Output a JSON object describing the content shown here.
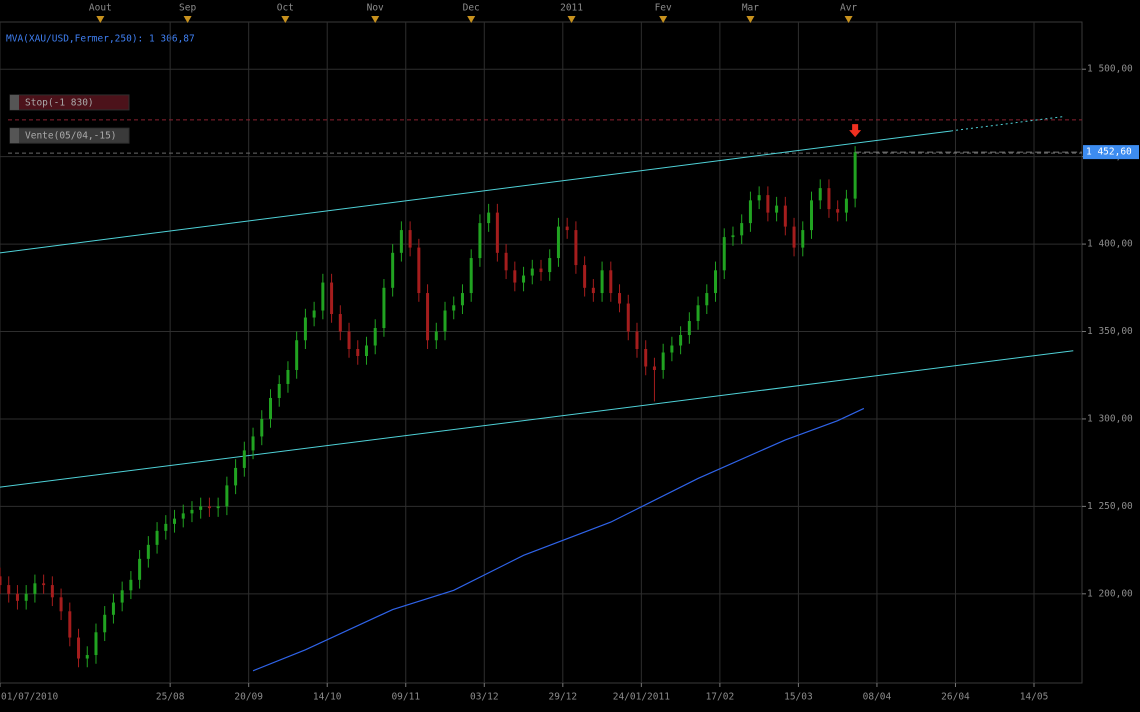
{
  "chart_data": {
    "type": "candlestick",
    "grid": true,
    "up_color": "#21a321",
    "down_color": "#a51d1d",
    "xlim": [
      0,
      248
    ],
    "ylim": [
      1149,
      1527
    ],
    "xticks": [
      {
        "value": 0,
        "label": "01/07/2010"
      },
      {
        "value": 39,
        "label": "25/08"
      },
      {
        "value": 57,
        "label": "20/09"
      },
      {
        "value": 75,
        "label": "14/10"
      },
      {
        "value": 93,
        "label": "09/11"
      },
      {
        "value": 111,
        "label": "03/12"
      },
      {
        "value": 129,
        "label": "29/12"
      },
      {
        "value": 147,
        "label": "24/01/2011"
      },
      {
        "value": 165,
        "label": "17/02"
      },
      {
        "value": 183,
        "label": "15/03"
      },
      {
        "value": 201,
        "label": "08/04"
      },
      {
        "value": 219,
        "label": "26/04"
      },
      {
        "value": 237,
        "label": "14/05"
      }
    ],
    "top_ticks": [
      {
        "value": 23,
        "label": "Aout"
      },
      {
        "value": 43,
        "label": "Sep"
      },
      {
        "value": 65.4,
        "label": "Oct"
      },
      {
        "value": 86,
        "label": "Nov"
      },
      {
        "value": 108,
        "label": "Dec"
      },
      {
        "value": 131,
        "label": "2011"
      },
      {
        "value": 152,
        "label": "Fev"
      },
      {
        "value": 172,
        "label": "Mar"
      },
      {
        "value": 194.5,
        "label": "Avr"
      }
    ],
    "yticks": [
      {
        "value": 1200,
        "label": "1 200,00"
      },
      {
        "value": 1250,
        "label": "1 250,00"
      },
      {
        "value": 1300,
        "label": "1 300,00"
      },
      {
        "value": 1350,
        "label": "1 350,00"
      },
      {
        "value": 1400,
        "label": "1 400,00"
      },
      {
        "value": 1450,
        "label": "1 450,00"
      },
      {
        "value": 1500,
        "label": "1 500,00"
      }
    ],
    "x": [
      0,
      2,
      4,
      6,
      8,
      10,
      12,
      14,
      16,
      18,
      20,
      22,
      24,
      26,
      28,
      30,
      32,
      34,
      36,
      38,
      40,
      42,
      44,
      46,
      48,
      50,
      52,
      54,
      56,
      58,
      60,
      62,
      64,
      66,
      68,
      70,
      72,
      74,
      76,
      78,
      80,
      82,
      84,
      86,
      88,
      90,
      92,
      94,
      96,
      98,
      100,
      102,
      104,
      106,
      108,
      110,
      112,
      114,
      116,
      118,
      120,
      122,
      124,
      126,
      128,
      130,
      132,
      134,
      136,
      138,
      140,
      142,
      144,
      146,
      148,
      150,
      152,
      154,
      156,
      158,
      160,
      162,
      164,
      166,
      168,
      170,
      172,
      174,
      176,
      178,
      180,
      182,
      184,
      186,
      188,
      190,
      192,
      194,
      196
    ],
    "open": [
      1210,
      1205,
      1200,
      1196,
      1200,
      1206,
      1205,
      1198,
      1190,
      1175,
      1163,
      1165,
      1178,
      1188,
      1195,
      1202,
      1208,
      1220,
      1228,
      1236,
      1240,
      1243,
      1246,
      1248,
      1250,
      1249,
      1250,
      1262,
      1272,
      1282,
      1290,
      1300,
      1312,
      1320,
      1328,
      1345,
      1358,
      1362,
      1378,
      1360,
      1350,
      1340,
      1336,
      1342,
      1352,
      1375,
      1395,
      1408,
      1398,
      1372,
      1345,
      1350,
      1362,
      1365,
      1372,
      1392,
      1412,
      1418,
      1395,
      1385,
      1378,
      1382,
      1386,
      1384,
      1392,
      1410,
      1408,
      1388,
      1375,
      1372,
      1385,
      1372,
      1366,
      1350,
      1340,
      1330,
      1328,
      1338,
      1342,
      1348,
      1356,
      1365,
      1372,
      1385,
      1404,
      1405,
      1412,
      1425,
      1428,
      1418,
      1422,
      1410,
      1398,
      1408,
      1425,
      1432,
      1420,
      1418,
      1426
    ],
    "high": [
      1215,
      1210,
      1205,
      1205,
      1211,
      1211,
      1210,
      1203,
      1195,
      1180,
      1170,
      1183,
      1193,
      1200,
      1207,
      1213,
      1225,
      1233,
      1241,
      1245,
      1248,
      1251,
      1253,
      1255,
      1255,
      1255,
      1267,
      1277,
      1287,
      1295,
      1305,
      1317,
      1325,
      1333,
      1350,
      1363,
      1367,
      1383,
      1383,
      1365,
      1355,
      1345,
      1347,
      1357,
      1380,
      1400,
      1413,
      1413,
      1403,
      1377,
      1355,
      1367,
      1370,
      1377,
      1397,
      1417,
      1423,
      1423,
      1400,
      1390,
      1387,
      1391,
      1391,
      1397,
      1415,
      1415,
      1413,
      1393,
      1380,
      1390,
      1390,
      1377,
      1371,
      1355,
      1345,
      1335,
      1343,
      1347,
      1353,
      1361,
      1370,
      1377,
      1390,
      1409,
      1410,
      1417,
      1430,
      1433,
      1433,
      1427,
      1427,
      1415,
      1413,
      1430,
      1437,
      1437,
      1425,
      1431,
      1456
    ],
    "low": [
      1200,
      1195,
      1191,
      1191,
      1195,
      1200,
      1193,
      1185,
      1170,
      1158,
      1158,
      1160,
      1173,
      1183,
      1190,
      1197,
      1203,
      1215,
      1223,
      1231,
      1235,
      1238,
      1241,
      1243,
      1244,
      1244,
      1245,
      1257,
      1267,
      1277,
      1285,
      1295,
      1307,
      1315,
      1323,
      1340,
      1353,
      1357,
      1355,
      1345,
      1335,
      1331,
      1331,
      1337,
      1347,
      1370,
      1390,
      1393,
      1367,
      1340,
      1340,
      1345,
      1357,
      1360,
      1367,
      1387,
      1407,
      1390,
      1380,
      1373,
      1373,
      1377,
      1379,
      1379,
      1387,
      1403,
      1383,
      1370,
      1367,
      1367,
      1367,
      1361,
      1345,
      1335,
      1325,
      1310,
      1323,
      1333,
      1337,
      1343,
      1351,
      1360,
      1367,
      1380,
      1399,
      1400,
      1407,
      1420,
      1413,
      1413,
      1405,
      1393,
      1393,
      1403,
      1420,
      1415,
      1413,
      1413,
      1421
    ],
    "close": [
      1205,
      1200,
      1196,
      1200,
      1206,
      1205,
      1198,
      1190,
      1175,
      1163,
      1165,
      1178,
      1188,
      1195,
      1202,
      1208,
      1220,
      1228,
      1236,
      1240,
      1243,
      1246,
      1248,
      1250,
      1249,
      1250,
      1262,
      1272,
      1282,
      1290,
      1300,
      1312,
      1320,
      1328,
      1345,
      1358,
      1362,
      1378,
      1360,
      1350,
      1340,
      1336,
      1342,
      1352,
      1375,
      1395,
      1408,
      1398,
      1372,
      1345,
      1350,
      1362,
      1365,
      1372,
      1392,
      1412,
      1418,
      1395,
      1385,
      1378,
      1382,
      1386,
      1384,
      1392,
      1410,
      1408,
      1388,
      1375,
      1372,
      1385,
      1372,
      1366,
      1350,
      1340,
      1330,
      1328,
      1338,
      1342,
      1348,
      1356,
      1365,
      1372,
      1385,
      1404,
      1405,
      1412,
      1425,
      1428,
      1418,
      1422,
      1410,
      1398,
      1408,
      1425,
      1432,
      1420,
      1418,
      1426,
      1452.6
    ],
    "mva": {
      "label": "MVA(XAU/USD,Fermer,250): 1 306,87",
      "color": "#2f63e8",
      "x": [
        58,
        70,
        90,
        104,
        120,
        140,
        160,
        180,
        192,
        198
      ],
      "values": [
        1156,
        1168,
        1191,
        1202,
        1222,
        1241,
        1266,
        1288,
        1299,
        1306
      ]
    },
    "trendlines": [
      {
        "color": "#4fd2d8",
        "x": [
          0,
          218,
          244
        ],
        "values": [
          1395,
          1464.7,
          1473
        ],
        "segment_styles": [
          "solid",
          "dotted"
        ]
      },
      {
        "color": "#4fd2d8",
        "x": [
          0,
          246
        ],
        "values": [
          1261,
          1339
        ],
        "segment_styles": [
          "solid"
        ]
      }
    ],
    "levels": [
      {
        "label": "Stop(-1 830)",
        "value": 1471,
        "color": "#8a2230"
      },
      {
        "label": "Vente(05/04,-15)",
        "value": 1452,
        "color": "#6a6a6a"
      }
    ],
    "last_price": {
      "value": 1452.6,
      "label": "1 452,60",
      "color": "#3d8cf0"
    }
  }
}
